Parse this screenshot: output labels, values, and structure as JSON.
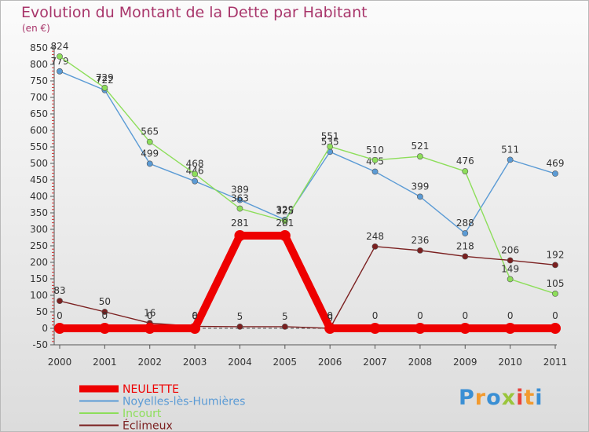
{
  "title": "Evolution du Montant de la Dette par Habitant",
  "subtitle": "(en €)",
  "logo": {
    "letters": [
      "P",
      "r",
      "o",
      "x",
      "i",
      "t",
      "i"
    ],
    "colors": [
      "#3a8fd4",
      "#f29a2e",
      "#3a8fd4",
      "#9ac53c",
      "#e8423a",
      "#f29a2e",
      "#3a8fd4"
    ]
  },
  "chart_data": {
    "type": "line",
    "title": "Evolution du Montant de la Dette par Habitant",
    "ylabel": "(en €)",
    "xlabel": "",
    "x": [
      "2000",
      "2001",
      "2002",
      "2003",
      "2004",
      "2005",
      "2006",
      "2007",
      "2008",
      "2009",
      "2010",
      "2011"
    ],
    "yticks": [
      -50,
      0,
      50,
      100,
      150,
      200,
      250,
      300,
      350,
      400,
      450,
      500,
      550,
      600,
      650,
      700,
      750,
      800,
      850
    ],
    "ylim": [
      -50,
      850
    ],
    "grid": false,
    "legend_position": "bottom-left",
    "series": [
      {
        "name": "NEULETTE",
        "color": "#ee0000",
        "values": [
          0,
          0,
          0,
          0,
          281,
          281,
          0,
          0,
          0,
          0,
          0,
          0
        ],
        "labels": [
          "0",
          "0",
          "0",
          "0",
          "281",
          "281",
          "0",
          "0",
          "0",
          "0",
          "0",
          "0"
        ]
      },
      {
        "name": "Noyelles-lès-Humières",
        "color": "#5b9bd5",
        "values": [
          779,
          722,
          499,
          446,
          389,
          329,
          535,
          475,
          399,
          288,
          511,
          469
        ],
        "labels": [
          "779",
          "722",
          "499",
          "446",
          "389",
          "329",
          "535",
          "475",
          "399",
          "288",
          "511",
          "469"
        ]
      },
      {
        "name": "Incourt",
        "color": "#8dde5a",
        "values": [
          824,
          729,
          565,
          468,
          363,
          325,
          551,
          510,
          521,
          476,
          149,
          105
        ],
        "labels": [
          "824",
          "729",
          "565",
          "468",
          "363",
          "325",
          "551",
          "510",
          "521",
          "476",
          "149",
          "105"
        ]
      },
      {
        "name": "Éclimeux",
        "color": "#7b2020",
        "values": [
          83,
          50,
          16,
          6,
          5,
          5,
          0,
          248,
          236,
          218,
          206,
          192
        ],
        "labels": [
          "83",
          "50",
          "16",
          "6",
          "5",
          "5",
          "0",
          "248",
          "236",
          "218",
          "206",
          "192"
        ]
      }
    ]
  }
}
